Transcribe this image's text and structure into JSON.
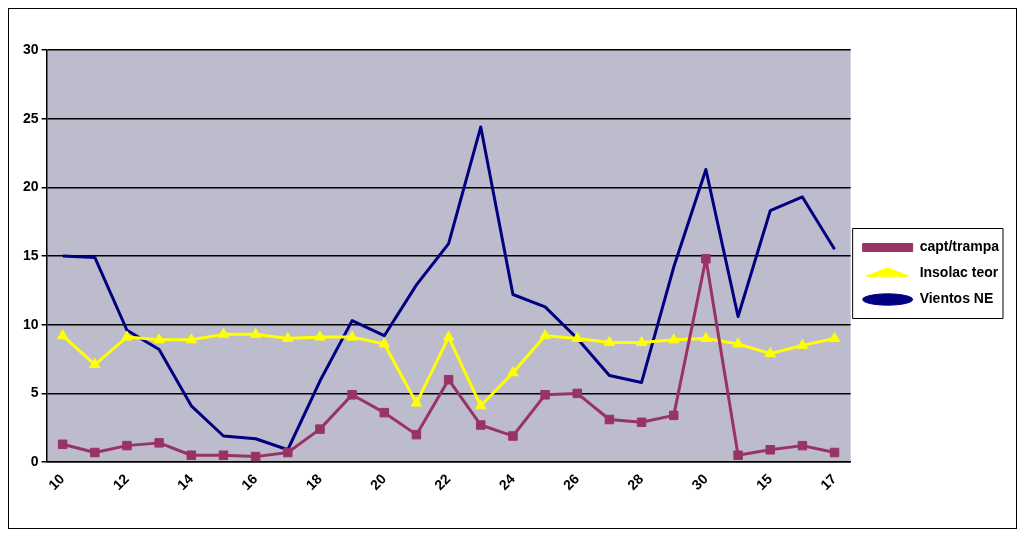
{
  "chart_data": {
    "type": "line",
    "categories": [
      "10",
      null,
      "12",
      null,
      "14",
      null,
      "16",
      null,
      "18",
      null,
      "20",
      null,
      "22",
      null,
      "24",
      null,
      "26",
      null,
      "28",
      null,
      "30",
      null,
      "15",
      null,
      "17"
    ],
    "series": [
      {
        "name": "capt/trampa",
        "color": "#993366",
        "marker": "square",
        "values": [
          1.3,
          0.7,
          1.2,
          1.4,
          0.5,
          0.5,
          0.4,
          0.7,
          2.4,
          4.9,
          3.6,
          2.0,
          6.0,
          2.7,
          1.9,
          4.9,
          5.0,
          3.1,
          2.9,
          3.4,
          14.8,
          0.5,
          0.9,
          1.2,
          0.7
        ]
      },
      {
        "name": "Insolac teor",
        "color": "#ffff00",
        "marker": "triangle",
        "values": [
          9.2,
          7.1,
          9.1,
          8.9,
          8.9,
          9.3,
          9.3,
          9.0,
          9.1,
          9.1,
          8.6,
          4.3,
          9.1,
          4.1,
          6.5,
          9.2,
          9.0,
          8.7,
          8.7,
          8.9,
          9.0,
          8.6,
          7.9,
          8.5,
          9.0
        ]
      },
      {
        "name": "Vientos NE",
        "color": "#000080",
        "marker": "none",
        "values": [
          15.0,
          14.9,
          9.6,
          8.2,
          4.1,
          1.9,
          1.7,
          0.9,
          5.9,
          10.3,
          9.2,
          12.9,
          15.9,
          24.4,
          12.2,
          11.3,
          9.0,
          6.3,
          5.8,
          14.2,
          21.3,
          10.6,
          18.3,
          19.3,
          15.5
        ]
      }
    ],
    "ylim": [
      0,
      30
    ],
    "yticks": [
      0,
      5,
      10,
      15,
      20,
      25,
      30
    ],
    "grid": "y",
    "legend": "right"
  }
}
